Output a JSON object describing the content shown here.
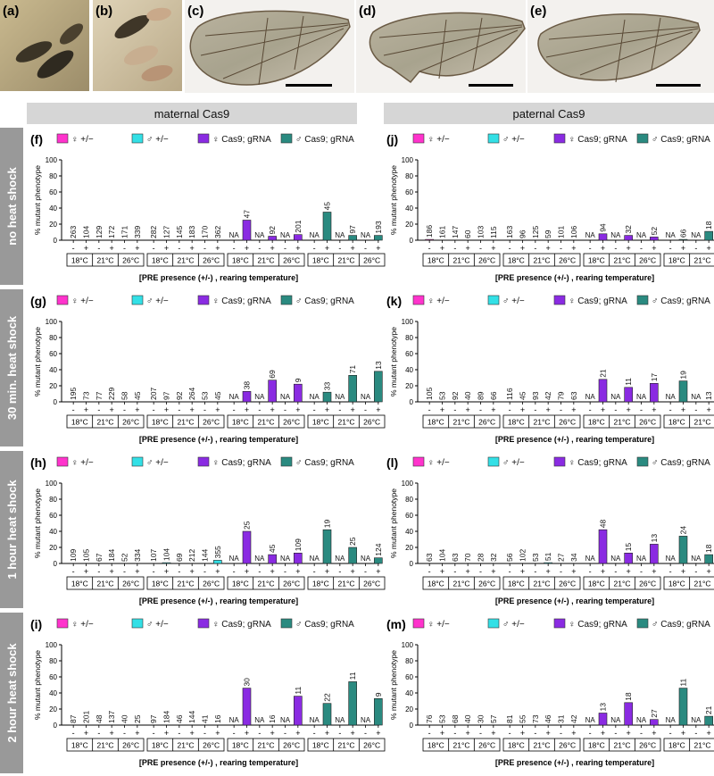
{
  "photos": {
    "labels": [
      "(a)",
      "(b)",
      "(c)",
      "(d)",
      "(e)"
    ]
  },
  "headers": {
    "maternal": "maternal Cas9",
    "paternal": "paternal Cas9"
  },
  "row_labels": [
    "no heat shock",
    "30 min. heat shock",
    "1 hour heat shock",
    "2 hour heat shock"
  ],
  "legend": {
    "entries": [
      {
        "label": "♀ +/−",
        "color": "#ff33cc"
      },
      {
        "label": "♂ +/−",
        "color": "#33e0e6"
      },
      {
        "label": "♀ Cas9; gRNA",
        "color": "#8a2be2"
      },
      {
        "label": "♂ Cas9; gRNA",
        "color": "#2a8a80"
      }
    ]
  },
  "colors": {
    "female_ctrl": "#ff33cc",
    "male_ctrl": "#33e0e6",
    "female_exp": "#8a2be2",
    "male_exp": "#2a8a80",
    "header_bg": "#d6d6d6",
    "side_bg": "#999999"
  },
  "axis": {
    "ylabel": "% mutant phenotype",
    "xlabel": "[PRE presence (+/-) , rearing temperature]",
    "ylim": [
      0,
      100
    ],
    "yticks": [
      0,
      20,
      40,
      60,
      80,
      100
    ],
    "temps": [
      "18°C",
      "21°C",
      "26°C"
    ],
    "signs": [
      "-",
      "+"
    ]
  },
  "chart_data": [
    {
      "panel": "(f)",
      "type": "bar",
      "groups": [
        {
          "series": "♀ +/−",
          "values": [
            0,
            0,
            0,
            0,
            0,
            0
          ],
          "labels": [
            "263",
            "104",
            "129",
            "172",
            "171",
            "339"
          ]
        },
        {
          "series": "♂ +/−",
          "values": [
            0,
            0,
            0,
            0,
            0,
            0
          ],
          "labels": [
            "282",
            "127",
            "145",
            "183",
            "170",
            "362"
          ]
        },
        {
          "series": "♀ Cas9; gRNA",
          "values": [
            0,
            25,
            0,
            5,
            0,
            7
          ],
          "labels": [
            "NA",
            "47",
            "NA",
            "92",
            "NA",
            "201"
          ]
        },
        {
          "series": "♂ Cas9; gRNA",
          "values": [
            0,
            35,
            0,
            6,
            0,
            6
          ],
          "labels": [
            "NA",
            "45",
            "NA",
            "97",
            "NA",
            "193"
          ]
        }
      ]
    },
    {
      "panel": "(j)",
      "type": "bar",
      "groups": [
        {
          "series": "♀ +/−",
          "values": [
            1,
            0,
            0,
            0,
            0,
            0
          ],
          "labels": [
            "186",
            "161",
            "147",
            "60",
            "103",
            "115"
          ]
        },
        {
          "series": "♂ +/−",
          "values": [
            0,
            0,
            0,
            0,
            0,
            0
          ],
          "labels": [
            "163",
            "96",
            "125",
            "59",
            "101",
            "106"
          ]
        },
        {
          "series": "♀ Cas9; gRNA",
          "values": [
            0,
            8,
            0,
            6,
            0,
            4
          ],
          "labels": [
            "NA",
            "94",
            "NA",
            "32",
            "NA",
            "52"
          ]
        },
        {
          "series": "♂ Cas9; gRNA",
          "values": [
            0,
            1,
            0,
            11,
            0,
            0
          ],
          "labels": [
            "NA",
            "66",
            "NA",
            "18",
            "NA",
            "66"
          ]
        }
      ]
    },
    {
      "panel": "(g)",
      "type": "bar",
      "groups": [
        {
          "series": "♀ +/−",
          "values": [
            0,
            0,
            0,
            0,
            0,
            0
          ],
          "labels": [
            "195",
            "73",
            "77",
            "229",
            "58",
            "45"
          ]
        },
        {
          "series": "♂ +/−",
          "values": [
            0,
            0,
            0,
            0,
            0,
            0
          ],
          "labels": [
            "207",
            "97",
            "92",
            "264",
            "53",
            "45"
          ]
        },
        {
          "series": "♀ Cas9; gRNA",
          "values": [
            0,
            13,
            0,
            27,
            0,
            22
          ],
          "labels": [
            "NA",
            "38",
            "NA",
            "69",
            "NA",
            "9"
          ]
        },
        {
          "series": "♂ Cas9; gRNA",
          "values": [
            0,
            12,
            0,
            33,
            0,
            38
          ],
          "labels": [
            "NA",
            "33",
            "NA",
            "71",
            "NA",
            "13"
          ]
        }
      ]
    },
    {
      "panel": "(k)",
      "type": "bar",
      "groups": [
        {
          "series": "♀ +/−",
          "values": [
            0,
            0,
            0,
            0,
            0,
            0
          ],
          "labels": [
            "105",
            "53",
            "92",
            "40",
            "89",
            "66"
          ]
        },
        {
          "series": "♂ +/−",
          "values": [
            0,
            0,
            0,
            0,
            0,
            0
          ],
          "labels": [
            "116",
            "45",
            "93",
            "42",
            "79",
            "63"
          ]
        },
        {
          "series": "♀ Cas9; gRNA",
          "values": [
            0,
            28,
            0,
            18,
            0,
            23
          ],
          "labels": [
            "NA",
            "21",
            "NA",
            "11",
            "NA",
            "17"
          ]
        },
        {
          "series": "♂ Cas9; gRNA",
          "values": [
            0,
            26,
            0,
            0,
            0,
            29
          ],
          "labels": [
            "NA",
            "19",
            "NA",
            "13",
            "NA",
            "17"
          ]
        }
      ]
    },
    {
      "panel": "(h)",
      "type": "bar",
      "groups": [
        {
          "series": "♀ +/−",
          "values": [
            0,
            0,
            0,
            0,
            0,
            0
          ],
          "labels": [
            "109",
            "105",
            "67",
            "184",
            "52",
            "334"
          ]
        },
        {
          "series": "♂ +/−",
          "values": [
            0,
            1,
            0,
            0,
            0,
            4
          ],
          "labels": [
            "107",
            "104",
            "69",
            "212",
            "144",
            "355"
          ]
        },
        {
          "series": "♀ Cas9; gRNA",
          "values": [
            0,
            40,
            0,
            11,
            0,
            13
          ],
          "labels": [
            "NA",
            "25",
            "NA",
            "45",
            "NA",
            "109"
          ]
        },
        {
          "series": "♂ Cas9; gRNA",
          "values": [
            0,
            42,
            0,
            20,
            0,
            7
          ],
          "labels": [
            "NA",
            "19",
            "NA",
            "25",
            "NA",
            "124"
          ]
        }
      ]
    },
    {
      "panel": "(l)",
      "type": "bar",
      "groups": [
        {
          "series": "♀ +/−",
          "values": [
            0,
            0,
            0,
            0,
            0,
            0
          ],
          "labels": [
            "63",
            "104",
            "63",
            "70",
            "28",
            "32"
          ]
        },
        {
          "series": "♂ +/−",
          "values": [
            0,
            0,
            0,
            1,
            0,
            0
          ],
          "labels": [
            "56",
            "102",
            "53",
            "51",
            "27",
            "34"
          ]
        },
        {
          "series": "♀ Cas9; gRNA",
          "values": [
            0,
            42,
            0,
            13,
            0,
            24
          ],
          "labels": [
            "NA",
            "48",
            "NA",
            "15",
            "NA",
            "13"
          ]
        },
        {
          "series": "♂ Cas9; gRNA",
          "values": [
            0,
            34,
            0,
            11,
            0,
            8
          ],
          "labels": [
            "NA",
            "24",
            "NA",
            "18",
            "NA",
            "12"
          ]
        }
      ]
    },
    {
      "panel": "(i)",
      "type": "bar",
      "groups": [
        {
          "series": "♀ +/−",
          "values": [
            0,
            0,
            0,
            0,
            0,
            0
          ],
          "labels": [
            "87",
            "201",
            "48",
            "137",
            "40",
            "25"
          ]
        },
        {
          "series": "♂ +/−",
          "values": [
            0,
            0,
            0,
            0,
            0,
            0
          ],
          "labels": [
            "97",
            "184",
            "46",
            "144",
            "41",
            "16"
          ]
        },
        {
          "series": "♀ Cas9; gRNA",
          "values": [
            0,
            46,
            0,
            0,
            0,
            36
          ],
          "labels": [
            "NA",
            "30",
            "NA",
            "16",
            "NA",
            "11"
          ]
        },
        {
          "series": "♂ Cas9; gRNA",
          "values": [
            0,
            27,
            0,
            54,
            0,
            33
          ],
          "labels": [
            "NA",
            "22",
            "NA",
            "11",
            "NA",
            "9"
          ]
        }
      ]
    },
    {
      "panel": "(m)",
      "type": "bar",
      "groups": [
        {
          "series": "♀ +/−",
          "values": [
            0,
            0,
            0,
            0,
            0,
            0
          ],
          "labels": [
            "76",
            "53",
            "68",
            "40",
            "30",
            "57"
          ]
        },
        {
          "series": "♂ +/−",
          "values": [
            0,
            0,
            0,
            0,
            0,
            0
          ],
          "labels": [
            "81",
            "55",
            "73",
            "46",
            "31",
            "42"
          ]
        },
        {
          "series": "♀ Cas9; gRNA",
          "values": [
            0,
            15,
            0,
            28,
            0,
            7
          ],
          "labels": [
            "NA",
            "13",
            "NA",
            "18",
            "NA",
            "27"
          ]
        },
        {
          "series": "♂ Cas9; gRNA",
          "values": [
            0,
            46,
            0,
            11,
            0,
            4
          ],
          "labels": [
            "NA",
            "11",
            "NA",
            "21",
            "NA",
            "23"
          ]
        }
      ]
    }
  ]
}
